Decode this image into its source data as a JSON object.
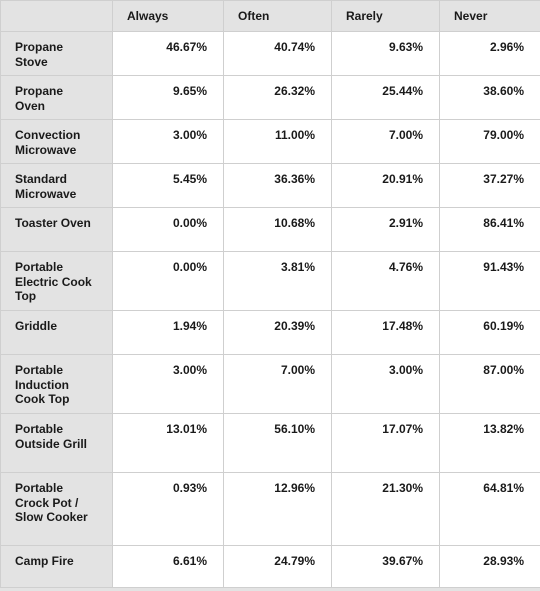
{
  "table": {
    "headers": [
      "",
      "Always",
      "Often",
      "Rarely",
      "Never"
    ],
    "rows": [
      {
        "label": "Propane Stove",
        "values": [
          "46.67%",
          "40.74%",
          "9.63%",
          "2.96%"
        ]
      },
      {
        "label": "Propane Oven",
        "values": [
          "9.65%",
          "26.32%",
          "25.44%",
          "38.60%"
        ]
      },
      {
        "label": "Convection Microwave",
        "values": [
          "3.00%",
          "11.00%",
          "7.00%",
          "79.00%"
        ]
      },
      {
        "label": "Standard Microwave",
        "values": [
          "5.45%",
          "36.36%",
          "20.91%",
          "37.27%"
        ]
      },
      {
        "label": "Toaster Oven",
        "values": [
          "0.00%",
          "10.68%",
          "2.91%",
          "86.41%"
        ]
      },
      {
        "label": "Portable Electric Cook Top",
        "values": [
          "0.00%",
          "3.81%",
          "4.76%",
          "91.43%"
        ]
      },
      {
        "label": "Griddle",
        "values": [
          "1.94%",
          "20.39%",
          "17.48%",
          "60.19%"
        ]
      },
      {
        "label": "Portable Induction Cook Top",
        "values": [
          "3.00%",
          "7.00%",
          "3.00%",
          "87.00%"
        ]
      },
      {
        "label": "Portable Outside Grill",
        "values": [
          "13.01%",
          "56.10%",
          "17.07%",
          "13.82%"
        ]
      },
      {
        "label": "Portable Crock Pot / Slow Cooker",
        "values": [
          "0.93%",
          "12.96%",
          "21.30%",
          "64.81%"
        ]
      },
      {
        "label": "Camp Fire",
        "values": [
          "6.61%",
          "24.79%",
          "39.67%",
          "28.93%"
        ]
      }
    ]
  },
  "colors": {
    "header_bg": "#e3e3e3",
    "cell_bg": "#ffffff",
    "border": "#cfcfcf",
    "text": "#1a1a1a"
  }
}
